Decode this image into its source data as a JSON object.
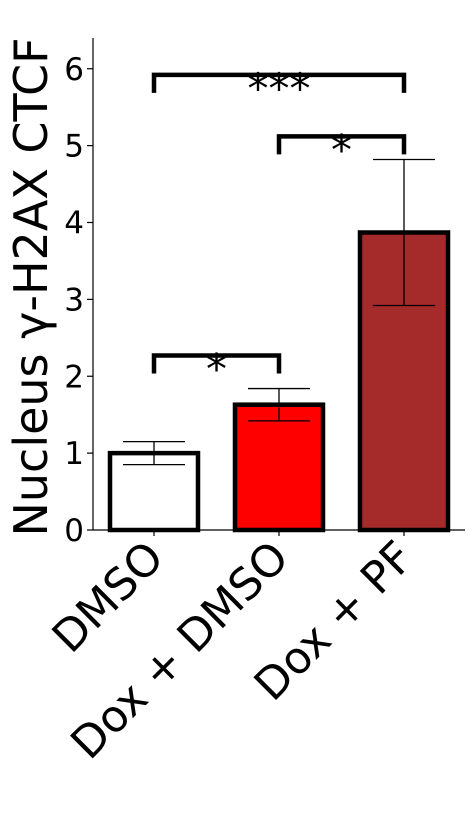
{
  "chart_data": {
    "type": "bar",
    "title": "",
    "xlabel": "",
    "ylabel": "Nucleus γ-H2AX CTCF",
    "categories": [
      "DMSO",
      "Dox + DMSO",
      "Dox + PF"
    ],
    "values": [
      1.0,
      1.63,
      3.87
    ],
    "errors": [
      0.15,
      0.21,
      0.95
    ],
    "colors": [
      "#ffffff",
      "#ff0000",
      "#a52a2a"
    ],
    "ylim": [
      0,
      6.4
    ],
    "yticks": [
      0,
      1,
      2,
      3,
      4,
      5,
      6
    ],
    "grid": false,
    "significance": [
      {
        "from": 0,
        "to": 1,
        "label": "*",
        "y": 2.27
      },
      {
        "from": 1,
        "to": 2,
        "label": "*",
        "y": 5.12
      },
      {
        "from": 0,
        "to": 2,
        "label": "***",
        "y": 5.92
      }
    ]
  }
}
